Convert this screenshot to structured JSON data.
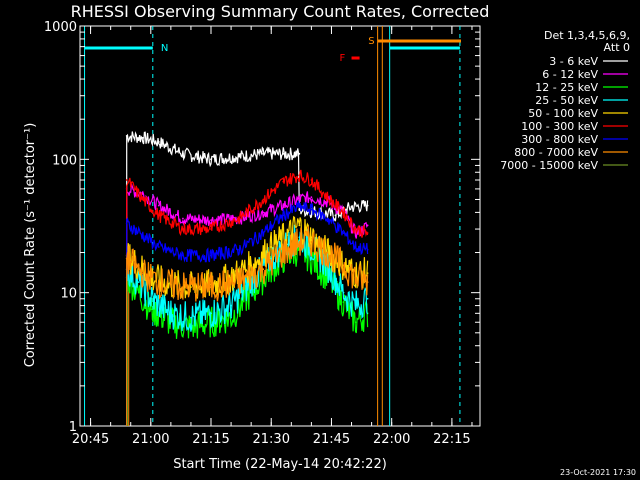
{
  "chart_data": {
    "type": "line",
    "title": "RHESSI Observing Summary Count Rates, Corrected",
    "xlabel": "Start Time (22-May-14 20:42:22)",
    "ylabel": "Corrected Count Rate (s⁻¹ detector⁻¹)",
    "y_scale": "log",
    "ylim": [
      1,
      1000
    ],
    "xlim": [
      "20:42:22",
      "22:22:00"
    ],
    "x_ticks": [
      "20:45",
      "21:00",
      "21:15",
      "21:30",
      "21:45",
      "22:00",
      "22:15"
    ],
    "y_ticks": [
      "1",
      "10",
      "100",
      "1000"
    ],
    "legend_title": [
      "Det 1,3,4,5,6,9,",
      "Att 0"
    ],
    "legend_position": "right",
    "timestamp": "23-Oct-2021 17:30",
    "flag_labels": {
      "night": "N",
      "saa": "S",
      "flare": "F"
    },
    "series": [
      {
        "name": "3 - 6 keV",
        "color": "#ffffff",
        "x": [
          "20:54",
          "20:58",
          "21:02",
          "21:08",
          "21:15",
          "21:22",
          "21:28",
          "21:33",
          "21:37",
          "21:37",
          "21:42",
          "21:46",
          "21:50",
          "21:54"
        ],
        "values": [
          150,
          145,
          135,
          110,
          100,
          105,
          110,
          110,
          110,
          42,
          40,
          38,
          44,
          45
        ]
      },
      {
        "name": "6 - 12 keV",
        "color": "#ff00ff",
        "x": [
          "20:54",
          "20:58",
          "21:02",
          "21:08",
          "21:15",
          "21:22",
          "21:28",
          "21:33",
          "21:37",
          "21:40",
          "21:44",
          "21:48",
          "21:51",
          "21:53",
          "21:54"
        ],
        "values": [
          60,
          55,
          45,
          36,
          35,
          36,
          40,
          45,
          50,
          52,
          48,
          40,
          28,
          30,
          32
        ]
      },
      {
        "name": "12 - 25 keV",
        "color": "#00ff00",
        "x": [
          "20:54",
          "20:57",
          "21:00",
          "21:05",
          "21:10",
          "21:15",
          "21:20",
          "21:25",
          "21:30",
          "21:34",
          "21:37",
          "21:40",
          "21:44",
          "21:48",
          "21:51",
          "21:54"
        ],
        "values": [
          13,
          10,
          7.5,
          6,
          5.5,
          6,
          6.5,
          10,
          15,
          19,
          21,
          18,
          13,
          8.5,
          6,
          7
        ]
      },
      {
        "name": "25 - 50 keV",
        "color": "#00ffff",
        "x": [
          "20:54",
          "20:57",
          "21:00",
          "21:05",
          "21:10",
          "21:15",
          "21:20",
          "21:25",
          "21:30",
          "21:34",
          "21:37",
          "21:40",
          "21:44",
          "21:48",
          "21:51",
          "21:54"
        ],
        "values": [
          15,
          12,
          9,
          7,
          6.5,
          7,
          8,
          12,
          18,
          23,
          26,
          22,
          16,
          10,
          8,
          9
        ]
      },
      {
        "name": "50 - 100 keV",
        "color": "#ffd700",
        "x": [
          "20:54",
          "20:57",
          "21:00",
          "21:05",
          "21:10",
          "21:15",
          "21:20",
          "21:25",
          "21:30",
          "21:34",
          "21:37",
          "21:40",
          "21:44",
          "21:48",
          "21:51",
          "21:54"
        ],
        "values": [
          19,
          16,
          13,
          11.5,
          11,
          11.5,
          13,
          16,
          22,
          27,
          32,
          26,
          20,
          16,
          14,
          14
        ]
      },
      {
        "name": "100 - 300 keV",
        "color": "#ff0000",
        "x": [
          "20:54",
          "20:58",
          "21:02",
          "21:08",
          "21:15",
          "21:22",
          "21:28",
          "21:33",
          "21:37",
          "21:40",
          "21:44",
          "21:48",
          "21:51",
          "21:54"
        ],
        "values": [
          70,
          50,
          38,
          30,
          30,
          36,
          50,
          68,
          76,
          70,
          52,
          40,
          30,
          28
        ]
      },
      {
        "name": "300 - 800 keV",
        "color": "#0000ff",
        "x": [
          "20:54",
          "20:58",
          "21:02",
          "21:08",
          "21:15",
          "21:22",
          "21:28",
          "21:33",
          "21:37",
          "21:40",
          "21:44",
          "21:48",
          "21:51",
          "21:54"
        ],
        "values": [
          33,
          27,
          22,
          19,
          19,
          21,
          28,
          38,
          44,
          42,
          36,
          28,
          22,
          21
        ]
      },
      {
        "name": "800 - 7000 keV",
        "color": "#ff8c00",
        "x": [
          "20:54",
          "20:58",
          "21:02",
          "21:08",
          "21:15",
          "21:22",
          "21:28",
          "21:33",
          "21:37",
          "21:40",
          "21:44",
          "21:48",
          "21:51",
          "21:54"
        ],
        "values": [
          18,
          14,
          12,
          11,
          11,
          12,
          15,
          20,
          24,
          24,
          20,
          16,
          13,
          12
        ]
      },
      {
        "name": "7000 - 15000 keV",
        "color": "#6b8e23",
        "x": [],
        "values": []
      }
    ]
  }
}
